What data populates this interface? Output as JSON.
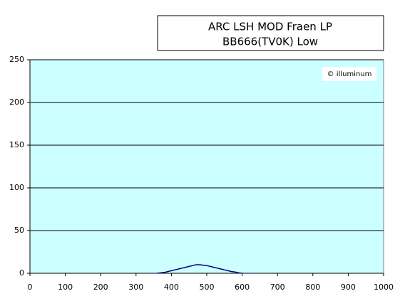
{
  "chart_data": {
    "type": "line",
    "title_lines": [
      "ARC LSH MOD Fraen LP",
      "BB666(TV0K) Low"
    ],
    "watermark": "© illuminum",
    "x": [
      360,
      370,
      380,
      390,
      400,
      410,
      420,
      430,
      440,
      450,
      460,
      470,
      480,
      490,
      500,
      510,
      520,
      530,
      540,
      550,
      560,
      570,
      580,
      590,
      600
    ],
    "series": [
      {
        "color": "#000080",
        "values": [
          0,
          0.5,
          1,
          2,
          3,
          4,
          5,
          6,
          7,
          8,
          9,
          10,
          10,
          9.5,
          9,
          8,
          7,
          6,
          5,
          4,
          3,
          2,
          1.5,
          0.5,
          0
        ]
      }
    ],
    "xlim": [
      0,
      1000
    ],
    "xticks": [
      0,
      100,
      200,
      300,
      400,
      500,
      600,
      700,
      800,
      900,
      1000
    ],
    "ylim": [
      0,
      250
    ],
    "yticks": [
      0,
      50,
      100,
      150,
      200,
      250
    ],
    "grid": true,
    "plot_background": "#ccffff"
  }
}
